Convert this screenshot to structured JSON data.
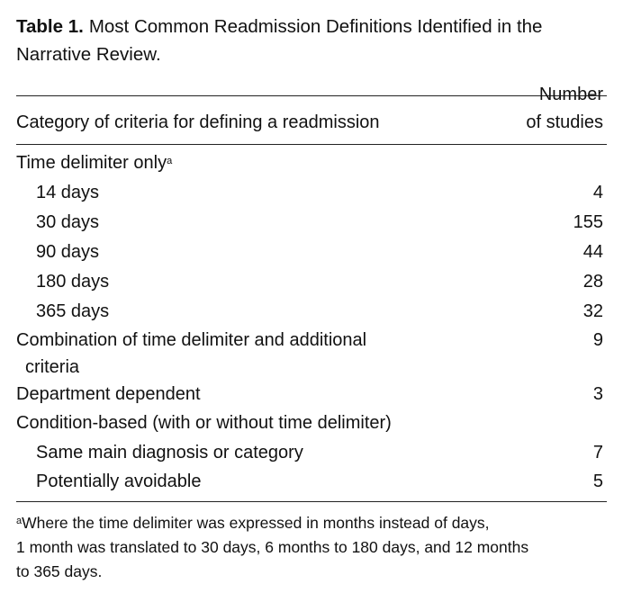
{
  "caption": {
    "label": "Table 1.",
    "text": "Most Common Readmission Definitions Identified in the Narrative Review."
  },
  "header": {
    "category": "Category of criteria for defining a readmission",
    "count_line1": "Number",
    "count_line2": "of studies"
  },
  "rows": [
    {
      "label": "Time delimiter only",
      "footnote_mark": "a",
      "value": "",
      "indent": false
    },
    {
      "label": "14 days",
      "value": "4",
      "indent": true
    },
    {
      "label": "30 days",
      "value": "155",
      "indent": true
    },
    {
      "label": "90 days",
      "value": "44",
      "indent": true
    },
    {
      "label": "180 days",
      "value": "28",
      "indent": true
    },
    {
      "label": "365 days",
      "value": "32",
      "indent": true
    },
    {
      "label": "Combination of time delimiter and additional",
      "label2": "criteria",
      "value": "9",
      "indent": false
    },
    {
      "label": "Department dependent",
      "value": "3",
      "indent": false
    },
    {
      "label": "Condition-based (with or without time delimiter)",
      "value": "",
      "indent": false
    },
    {
      "label": "Same main diagnosis or category",
      "value": "7",
      "indent": true
    },
    {
      "label": "Potentially avoidable",
      "value": "5",
      "indent": true
    }
  ],
  "footnote": {
    "mark": "a",
    "line1": "Where the time delimiter was expressed in months instead of days,",
    "line2": "1 month was translated to 30 days, 6 months to 180 days, and 12 months",
    "line3": "to 365 days."
  }
}
